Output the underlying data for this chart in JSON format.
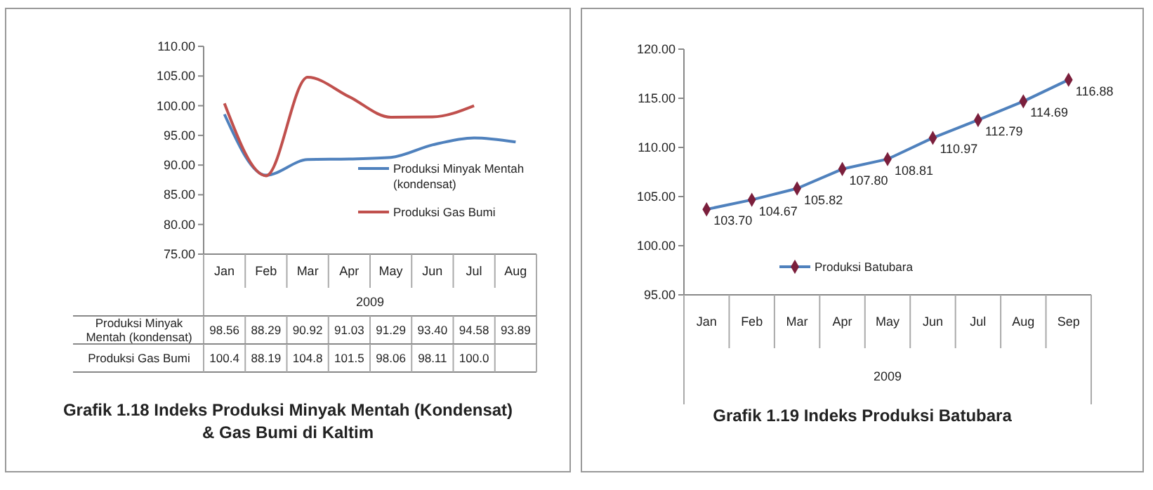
{
  "chart_data": [
    {
      "type": "line",
      "title": "Grafik 1.18  Indeks Produksi Minyak Mentah (Kondensat) & Gas Bumi di Kaltim",
      "xlabel": "2009",
      "categories": [
        "Jan",
        "Feb",
        "Mar",
        "Apr",
        "May",
        "Jun",
        "Jul",
        "Aug"
      ],
      "ylim": [
        75,
        110
      ],
      "yticks": [
        {
          "value": 75,
          "label": "75.00"
        },
        {
          "value": 80,
          "label": "80.00"
        },
        {
          "value": 85,
          "label": "85.00"
        },
        {
          "value": 90,
          "label": "90.00"
        },
        {
          "value": 95,
          "label": "95.00"
        },
        {
          "value": 100,
          "label": "100.00"
        },
        {
          "value": 105,
          "label": "105.00"
        },
        {
          "value": 110,
          "label": "110.00"
        }
      ],
      "legend": "bottom right",
      "series": [
        {
          "name": "Produksi Minyak Mentah (kondensat)",
          "color": "#4f81bd",
          "values": [
            98.56,
            88.29,
            90.92,
            91.03,
            91.29,
            93.4,
            94.58,
            93.89
          ],
          "value_labels": [
            "98.56",
            "88.29",
            "90.92",
            "91.03",
            "91.29",
            "93.40",
            "94.58",
            "93.89"
          ]
        },
        {
          "name": "Produksi Gas Bumi",
          "color": "#c0504d",
          "values": [
            100.4,
            88.19,
            104.8,
            101.5,
            98.06,
            98.11,
            100.0,
            null
          ],
          "value_labels": [
            "100.4",
            "88.19",
            "104.8",
            "101.5",
            "98.06",
            "98.11",
            "100.0",
            null
          ]
        }
      ]
    },
    {
      "type": "line",
      "title": "Grafik 1.19 Indeks Produksi Batubara",
      "xlabel": "2009",
      "categories": [
        "Jan",
        "Feb",
        "Mar",
        "Apr",
        "May",
        "Jun",
        "Jul",
        "Aug",
        "Sep"
      ],
      "ylim": [
        95,
        120
      ],
      "yticks": [
        {
          "value": 95,
          "label": "95.00"
        },
        {
          "value": 100,
          "label": "100.00"
        },
        {
          "value": 105,
          "label": "105.00"
        },
        {
          "value": 110,
          "label": "110.00"
        },
        {
          "value": 115,
          "label": "115.00"
        },
        {
          "value": 120,
          "label": "120.00"
        }
      ],
      "legend": "bottom",
      "marker": "diamond",
      "series": [
        {
          "name": "Produksi Batubara",
          "color": "#4f81bd",
          "values": [
            103.7,
            104.67,
            105.82,
            107.8,
            108.81,
            110.97,
            112.79,
            114.69,
            116.88
          ],
          "value_labels": [
            "103.70",
            "104.67",
            "105.82",
            "107.80",
            "108.81",
            "110.97",
            "112.79",
            "114.69",
            "116.88"
          ]
        }
      ]
    }
  ]
}
